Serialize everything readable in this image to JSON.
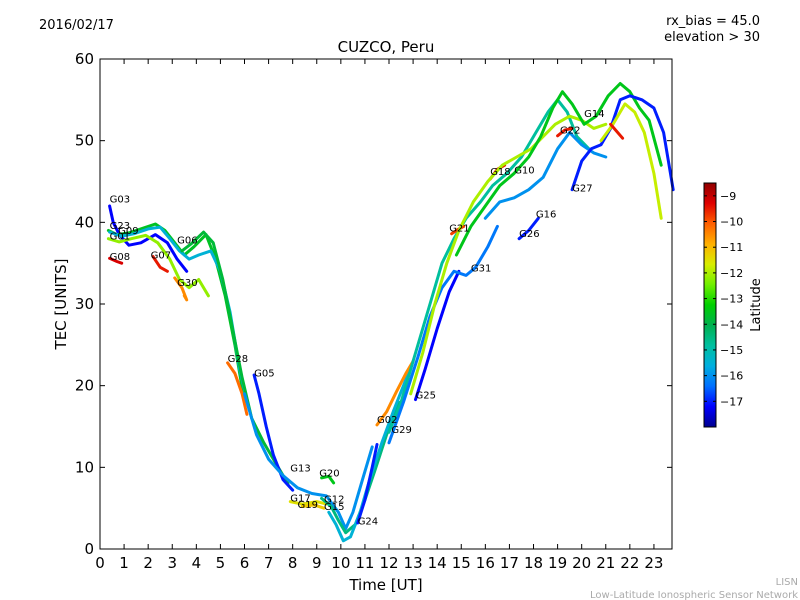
{
  "header": {
    "date": "2016/02/17",
    "bias_line1": "rx_bias = 45.0",
    "bias_line2": "elevation > 30"
  },
  "footer": {
    "line1": "LISN",
    "line2": "Low-Latitude Ionospheric Sensor Network"
  },
  "colors": {
    "scale": [
      "#00008f",
      "#0000ff",
      "#006fff",
      "#00afdf",
      "#00c0a0",
      "#00b050",
      "#00d000",
      "#70f000",
      "#d8ee00",
      "#ffb000",
      "#ff6000",
      "#e00000",
      "#900000"
    ],
    "axis": "#000000",
    "footer_text": "#aaaaaa"
  },
  "chart_data": {
    "type": "line",
    "title": "CUZCO, Peru",
    "xlabel": "Time [UT]",
    "ylabel": "TEC [UNITS]",
    "xlim": [
      0,
      23.75
    ],
    "ylim": [
      0,
      60
    ],
    "xticks": [
      0,
      1,
      2,
      3,
      4,
      5,
      6,
      7,
      8,
      9,
      10,
      11,
      12,
      13,
      14,
      15,
      16,
      17,
      18,
      19,
      20,
      21,
      22,
      23
    ],
    "yticks": [
      0,
      10,
      20,
      30,
      40,
      50,
      60
    ],
    "grid": false,
    "colorbar": {
      "label": "Latitude",
      "min": -18,
      "max": -8.5,
      "ticks": [
        -9,
        -10,
        -11,
        -12,
        -13,
        -14,
        -15,
        -16,
        -17
      ]
    },
    "series": [
      {
        "name": "G03",
        "lat": -17.2,
        "label_at": [
          0.4,
          42.4
        ],
        "points": [
          [
            0.4,
            42
          ],
          [
            0.55,
            40
          ],
          [
            0.8,
            38.5
          ],
          [
            1.2,
            37.2
          ],
          [
            1.7,
            37.5
          ],
          [
            2.3,
            38.5
          ],
          [
            2.8,
            37.5
          ],
          [
            3.2,
            35.5
          ],
          [
            3.6,
            34
          ]
        ]
      },
      {
        "name": "G23",
        "lat": -13.6,
        "label_at": [
          0.4,
          39.2
        ],
        "points": [
          [
            0.35,
            39
          ],
          [
            0.7,
            38.5
          ],
          [
            1.2,
            38.7
          ],
          [
            1.8,
            39.3
          ],
          [
            2.3,
            39.8
          ],
          [
            2.7,
            39
          ],
          [
            3.1,
            37.5
          ],
          [
            3.5,
            36
          ],
          [
            3.9,
            37
          ],
          [
            4.4,
            38.5
          ],
          [
            4.8,
            35.5
          ],
          [
            5.2,
            31
          ],
          [
            5.6,
            25
          ],
          [
            6,
            18
          ]
        ]
      },
      {
        "name": "G01",
        "lat": -12.2,
        "label_at": [
          0.4,
          37.9
        ],
        "points": [
          [
            0.35,
            38
          ],
          [
            0.8,
            37.6
          ],
          [
            1.3,
            38
          ],
          [
            1.9,
            38.4
          ],
          [
            2.4,
            37.5
          ],
          [
            2.9,
            35.5
          ],
          [
            3.3,
            33
          ],
          [
            3.7,
            32
          ],
          [
            4.1,
            33
          ],
          [
            4.5,
            31
          ]
        ]
      },
      {
        "name": "G09",
        "lat": -15.5,
        "label_at": [
          0.75,
          38.6
        ],
        "points": [
          [
            0.4,
            38.8
          ],
          [
            0.9,
            38.3
          ],
          [
            1.4,
            38.6
          ],
          [
            2.0,
            39.2
          ],
          [
            2.5,
            39.4
          ],
          [
            2.9,
            38
          ],
          [
            3.3,
            36.5
          ],
          [
            3.7,
            35.5
          ],
          [
            4.1,
            36
          ],
          [
            4.6,
            36.5
          ],
          [
            5.0,
            34
          ],
          [
            5.4,
            29
          ],
          [
            5.8,
            22
          ],
          [
            6.2,
            17
          ]
        ]
      },
      {
        "name": "G08",
        "lat": -9.2,
        "label_at": [
          0.4,
          35.4
        ],
        "points": [
          [
            0.4,
            35.6
          ],
          [
            0.7,
            35.2
          ],
          [
            0.9,
            35
          ]
        ]
      },
      {
        "name": "G07",
        "lat": -9.5,
        "label_at": [
          2.1,
          35.6
        ],
        "points": [
          [
            2.2,
            35.8
          ],
          [
            2.5,
            34.5
          ],
          [
            2.8,
            34
          ]
        ]
      },
      {
        "name": "G30",
        "lat": -10.5,
        "label_at": [
          3.2,
          32.2
        ],
        "points": [
          [
            3.1,
            33.2
          ],
          [
            3.4,
            32
          ],
          [
            3.6,
            30.5
          ],
          [
            3.5,
            31
          ]
        ]
      },
      {
        "name": "G06",
        "lat": -13.8,
        "label_at": [
          3.2,
          37.4
        ],
        "points": [
          [
            3.4,
            36.5
          ],
          [
            3.8,
            37.4
          ],
          [
            4.3,
            38.8
          ],
          [
            4.7,
            37.5
          ],
          [
            5.1,
            33
          ],
          [
            5.5,
            27
          ],
          [
            5.9,
            21
          ],
          [
            6.3,
            16
          ],
          [
            6.8,
            13
          ],
          [
            7.3,
            10.5
          ],
          [
            7.8,
            8
          ]
        ]
      },
      {
        "name": "G28",
        "lat": -10.2,
        "label_at": [
          5.3,
          22.9
        ],
        "points": [
          [
            5.3,
            22.8
          ],
          [
            5.6,
            21.5
          ],
          [
            5.9,
            19
          ],
          [
            6.1,
            16.5
          ]
        ]
      },
      {
        "name": "G05",
        "lat": -17.0,
        "label_at": [
          6.4,
          21.1
        ],
        "points": [
          [
            6.4,
            21.3
          ],
          [
            6.6,
            19
          ],
          [
            6.9,
            15
          ],
          [
            7.2,
            11.5
          ],
          [
            7.6,
            8.5
          ],
          [
            8.0,
            7.2
          ]
        ]
      },
      {
        "name": "G13",
        "lat": -16.0,
        "label_at": [
          7.9,
          9.5
        ],
        "points": [
          [
            6.0,
            19
          ],
          [
            6.5,
            14
          ],
          [
            7.0,
            11
          ],
          [
            7.6,
            9
          ],
          [
            8.2,
            7.5
          ],
          [
            8.8,
            6.8
          ],
          [
            9.4,
            6.5
          ],
          [
            9.9,
            4.5
          ],
          [
            10.2,
            2.5
          ],
          [
            10.5,
            4.5
          ],
          [
            10.9,
            8.5
          ],
          [
            11.3,
            12.5
          ]
        ]
      },
      {
        "name": "G17",
        "lat": -11.5,
        "label_at": [
          7.9,
          5.8
        ],
        "points": [
          [
            7.9,
            5.8
          ],
          [
            8.4,
            5.5
          ],
          [
            9.0,
            5.8
          ],
          [
            9.4,
            5.5
          ]
        ]
      },
      {
        "name": "G19",
        "lat": -11.2,
        "label_at": [
          8.2,
          5.0
        ],
        "points": [
          [
            8.4,
            5.2
          ],
          [
            8.9,
            5.4
          ],
          [
            9.3,
            5
          ]
        ]
      },
      {
        "name": "G20",
        "lat": -13.5,
        "label_at": [
          9.1,
          8.9
        ],
        "points": [
          [
            9.2,
            8.7
          ],
          [
            9.5,
            8.9
          ],
          [
            9.7,
            8.1
          ]
        ]
      },
      {
        "name": "G12",
        "lat": -14.5,
        "label_at": [
          9.3,
          5.7
        ],
        "points": [
          [
            9.2,
            6.2
          ],
          [
            9.6,
            5.2
          ],
          [
            9.9,
            3.5
          ],
          [
            10.2,
            2
          ],
          [
            10.6,
            3
          ],
          [
            11.0,
            6
          ],
          [
            11.4,
            9.5
          ],
          [
            11.9,
            14
          ],
          [
            12.4,
            18
          ]
        ]
      },
      {
        "name": "G15",
        "lat": -15.5,
        "label_at": [
          9.3,
          4.8
        ],
        "points": [
          [
            9.5,
            4.5
          ],
          [
            9.8,
            3
          ],
          [
            10.1,
            1
          ],
          [
            10.4,
            1.5
          ],
          [
            10.8,
            4.5
          ],
          [
            11.2,
            8.5
          ],
          [
            11.7,
            13
          ],
          [
            12.2,
            17
          ],
          [
            12.8,
            21.5
          ]
        ]
      },
      {
        "name": "G24",
        "lat": -17.0,
        "label_at": [
          10.7,
          3.0
        ],
        "points": [
          [
            10.7,
            3.2
          ],
          [
            11.0,
            6
          ],
          [
            11.3,
            10
          ],
          [
            11.5,
            12.8
          ]
        ]
      },
      {
        "name": "G02",
        "lat": -10.5,
        "label_at": [
          11.5,
          15.4
        ],
        "points": [
          [
            11.5,
            15.2
          ],
          [
            11.9,
            16.8
          ],
          [
            12.3,
            19.2
          ],
          [
            12.7,
            21.5
          ],
          [
            13.0,
            23
          ]
        ]
      },
      {
        "name": "G29",
        "lat": -14.8,
        "label_at": [
          12.1,
          14.2
        ],
        "points": [
          [
            12.0,
            14.3
          ],
          [
            12.5,
            18
          ],
          [
            13.1,
            24
          ],
          [
            13.7,
            30
          ],
          [
            14.2,
            35
          ],
          [
            14.7,
            38
          ],
          [
            15.2,
            40.5
          ],
          [
            15.8,
            42.5
          ],
          [
            16.3,
            44.5
          ],
          [
            16.9,
            46
          ],
          [
            17.5,
            48
          ],
          [
            18.1,
            51
          ],
          [
            18.6,
            53.5
          ],
          [
            19.0,
            55
          ],
          [
            19.4,
            53.5
          ],
          [
            19.8,
            50.5
          ],
          [
            20.3,
            49
          ]
        ]
      },
      {
        "name": "G25",
        "lat": -17.2,
        "label_at": [
          13.1,
          18.4
        ],
        "points": [
          [
            13.1,
            18.3
          ],
          [
            13.5,
            22
          ],
          [
            14.0,
            27
          ],
          [
            14.5,
            31.5
          ],
          [
            14.9,
            34
          ]
        ]
      },
      {
        "name": "G21",
        "lat": -9.8,
        "label_at": [
          14.5,
          38.9
        ],
        "points": [
          [
            14.6,
            38.6
          ],
          [
            14.9,
            39.2
          ],
          [
            15.1,
            39.5
          ]
        ]
      },
      {
        "name": "G31",
        "lat": -16.3,
        "label_at": [
          15.4,
          34.0
        ],
        "points": [
          [
            12.0,
            13
          ],
          [
            12.6,
            18
          ],
          [
            13.2,
            23.5
          ],
          [
            13.7,
            28.5
          ],
          [
            14.2,
            32
          ],
          [
            14.7,
            34
          ],
          [
            15.2,
            33.5
          ],
          [
            15.6,
            34.5
          ],
          [
            16.1,
            37
          ],
          [
            16.5,
            39.5
          ]
        ]
      },
      {
        "name": "G18",
        "lat": -9.5,
        "label_at": [
          16.2,
          45.8
        ],
        "points": [
          [
            16.2,
            45.3
          ],
          [
            16.5,
            46.5
          ],
          [
            16.8,
            47
          ]
        ]
      },
      {
        "name": "G10",
        "lat": -12.0,
        "label_at": [
          17.2,
          46.0
        ],
        "points": [
          [
            12.9,
            19
          ],
          [
            13.4,
            24
          ],
          [
            13.9,
            30
          ],
          [
            14.4,
            35
          ],
          [
            14.9,
            39
          ],
          [
            15.5,
            42.5
          ],
          [
            16.1,
            45
          ],
          [
            16.7,
            47
          ],
          [
            17.3,
            48
          ],
          [
            17.9,
            49
          ],
          [
            18.4,
            50.5
          ],
          [
            18.9,
            52
          ],
          [
            19.5,
            53
          ],
          [
            20.0,
            52.5
          ],
          [
            20.5,
            51.5
          ],
          [
            21.0,
            52
          ]
        ]
      },
      {
        "name": "G26",
        "lat": -17.0,
        "label_at": [
          17.4,
          38.2
        ],
        "points": [
          [
            17.4,
            38
          ],
          [
            17.8,
            39
          ],
          [
            18.2,
            40.5
          ]
        ]
      },
      {
        "name": "G16",
        "lat": -16.0,
        "label_at": [
          18.1,
          40.6
        ],
        "points": [
          [
            16.0,
            40.5
          ],
          [
            16.6,
            42.5
          ],
          [
            17.2,
            43
          ],
          [
            17.8,
            44
          ],
          [
            18.4,
            45.5
          ],
          [
            19.0,
            49
          ],
          [
            19.5,
            51
          ],
          [
            20.0,
            49.5
          ],
          [
            20.5,
            48.5
          ],
          [
            21.0,
            48
          ]
        ]
      },
      {
        "name": "G22",
        "lat": -9.5,
        "label_at": [
          19.1,
          50.9
        ],
        "points": [
          [
            19.0,
            50.6
          ],
          [
            19.3,
            51.3
          ],
          [
            19.6,
            51.5
          ]
        ]
      },
      {
        "name": "G14",
        "lat": -13.5,
        "label_at": [
          20.1,
          52.9
        ],
        "points": [
          [
            14.8,
            36
          ],
          [
            15.4,
            39.5
          ],
          [
            16.0,
            42
          ],
          [
            16.6,
            44.5
          ],
          [
            17.2,
            46
          ],
          [
            17.8,
            48
          ],
          [
            18.3,
            50.5
          ],
          [
            18.8,
            54
          ],
          [
            19.2,
            56
          ],
          [
            19.6,
            54.5
          ],
          [
            20.1,
            52
          ],
          [
            20.6,
            53
          ],
          [
            21.1,
            55.5
          ],
          [
            21.6,
            57
          ],
          [
            22.0,
            56
          ],
          [
            22.4,
            54
          ],
          [
            22.8,
            52.5
          ],
          [
            23.3,
            47
          ]
        ]
      },
      {
        "name": "G27",
        "lat": -17.0,
        "label_at": [
          19.6,
          43.8
        ],
        "points": [
          [
            19.6,
            44
          ],
          [
            20.0,
            47.5
          ],
          [
            20.4,
            49
          ],
          [
            20.8,
            49.5
          ],
          [
            21.2,
            51.5
          ],
          [
            21.6,
            55
          ],
          [
            22.0,
            55.5
          ],
          [
            22.5,
            55
          ],
          [
            23.0,
            54
          ],
          [
            23.4,
            51
          ],
          [
            23.8,
            44
          ]
        ]
      },
      {
        "name": "",
        "lat": -11.8,
        "label_at": null,
        "points": [
          [
            20.8,
            50
          ],
          [
            21.3,
            52
          ],
          [
            21.8,
            54.5
          ],
          [
            22.2,
            53.5
          ],
          [
            22.6,
            51
          ],
          [
            23.0,
            46
          ],
          [
            23.3,
            40.5
          ]
        ]
      },
      {
        "name": "",
        "lat": -9.5,
        "label_at": null,
        "points": [
          [
            21.2,
            52
          ],
          [
            21.7,
            50.3
          ]
        ]
      }
    ]
  }
}
